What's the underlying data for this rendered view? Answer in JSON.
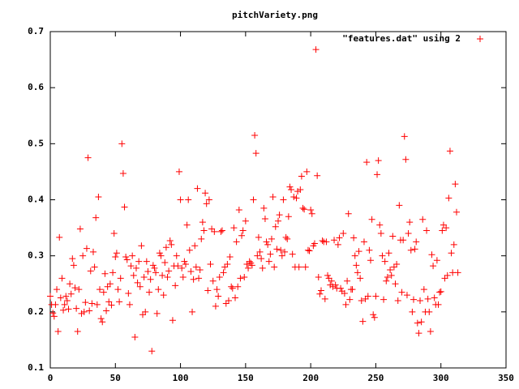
{
  "chart_data": {
    "type": "scatter",
    "title": "pitchVariety.png",
    "xlim": [
      0,
      350
    ],
    "xticks": [
      0,
      50,
      100,
      150,
      200,
      250,
      300,
      350
    ],
    "ylim": [
      0.1,
      0.7
    ],
    "yticks": [
      0.1,
      0.2,
      0.3,
      0.4,
      0.5,
      0.6,
      0.7
    ],
    "legend": "top-right",
    "series": [
      {
        "name": "\"features.dat\" using 2",
        "color": "#ff0000",
        "x": [
          0,
          1,
          2,
          3,
          4,
          5,
          6,
          7,
          8,
          9,
          10,
          11,
          12,
          13,
          14,
          15,
          16,
          17,
          18,
          19,
          20,
          21,
          22,
          23,
          24,
          25,
          26,
          27,
          28,
          29,
          30,
          31,
          32,
          33,
          34,
          35,
          36,
          37,
          38,
          39,
          40,
          41,
          42,
          43,
          44,
          45,
          46,
          47,
          48,
          49,
          50,
          51,
          52,
          53,
          54,
          55,
          56,
          57,
          58,
          59,
          60,
          61,
          62,
          63,
          64,
          65,
          66,
          67,
          68,
          69,
          70,
          71,
          72,
          73,
          74,
          75,
          76,
          77,
          78,
          79,
          80,
          81,
          82,
          83,
          84,
          85,
          86,
          87,
          88,
          89,
          90,
          91,
          92,
          93,
          94,
          95,
          96,
          97,
          98,
          99,
          100,
          101,
          102,
          103,
          104,
          105,
          106,
          107,
          108,
          109,
          110,
          111,
          112,
          113,
          114,
          115,
          116,
          117,
          118,
          119,
          120,
          121,
          122,
          123,
          124,
          125,
          126,
          127,
          128,
          129,
          130,
          131,
          132,
          133,
          134,
          135,
          136,
          137,
          138,
          139,
          140,
          141,
          142,
          143,
          144,
          145,
          146,
          147,
          148,
          149,
          150,
          151,
          152,
          153,
          154,
          155,
          156,
          157,
          158,
          159,
          160,
          161,
          162,
          163,
          164,
          165,
          166,
          167,
          168,
          169,
          170,
          171,
          172,
          173,
          174,
          175,
          176,
          177,
          178,
          179,
          180,
          181,
          182,
          183,
          184,
          185,
          186,
          187,
          188,
          189,
          190,
          191,
          192,
          193,
          194,
          195,
          196,
          197,
          198,
          199,
          200,
          201,
          202,
          203,
          204,
          205,
          206,
          207,
          208,
          209,
          210,
          211,
          212,
          213,
          214,
          215,
          216,
          217,
          218,
          219,
          220,
          221,
          222,
          223,
          224,
          225,
          226,
          227,
          228,
          229,
          230,
          231,
          232,
          233,
          234,
          235,
          236,
          237,
          238,
          239,
          240,
          241,
          242,
          243,
          244,
          245,
          246,
          247,
          248,
          249,
          250,
          251,
          252,
          253,
          254,
          255,
          256,
          257,
          258,
          259,
          260,
          261,
          262,
          263,
          264,
          265,
          266,
          267,
          268,
          269,
          270,
          271,
          272,
          273,
          274,
          275,
          276,
          277,
          278,
          279,
          280,
          281,
          282,
          283,
          284,
          285,
          286,
          287,
          288,
          289,
          290,
          291,
          292,
          293,
          294,
          295,
          296,
          297,
          298,
          299,
          300,
          301,
          302,
          303,
          304,
          305,
          306,
          307,
          308,
          309,
          310,
          311,
          312,
          313
        ],
        "values": [
          0.228,
          0.213,
          0.198,
          0.192,
          0.213,
          0.24,
          0.165,
          0.333,
          0.225,
          0.26,
          0.203,
          0.213,
          0.228,
          0.22,
          0.205,
          0.25,
          0.232,
          0.295,
          0.283,
          0.243,
          0.206,
          0.165,
          0.24,
          0.348,
          0.197,
          0.3,
          0.2,
          0.217,
          0.313,
          0.475,
          0.202,
          0.273,
          0.215,
          0.307,
          0.28,
          0.368,
          0.213,
          0.405,
          0.24,
          0.188,
          0.182,
          0.235,
          0.268,
          0.202,
          0.245,
          0.218,
          0.25,
          0.212,
          0.27,
          0.34,
          0.298,
          0.305,
          0.24,
          0.218,
          0.26,
          0.5,
          0.447,
          0.387,
          0.298,
          0.293,
          0.233,
          0.213,
          0.282,
          0.3,
          0.265,
          0.155,
          0.278,
          0.252,
          0.29,
          0.245,
          0.318,
          0.195,
          0.262,
          0.2,
          0.29,
          0.272,
          0.235,
          0.258,
          0.13,
          0.283,
          0.278,
          0.27,
          0.197,
          0.24,
          0.305,
          0.3,
          0.265,
          0.23,
          0.288,
          0.315,
          0.262,
          0.273,
          0.327,
          0.32,
          0.185,
          0.282,
          0.247,
          0.3,
          0.282,
          0.45,
          0.4,
          0.278,
          0.262,
          0.29,
          0.285,
          0.355,
          0.4,
          0.31,
          0.272,
          0.2,
          0.258,
          0.318,
          0.28,
          0.42,
          0.26,
          0.275,
          0.33,
          0.36,
          0.345,
          0.412,
          0.393,
          0.238,
          0.4,
          0.285,
          0.348,
          0.255,
          0.343,
          0.21,
          0.24,
          0.228,
          0.262,
          0.343,
          0.345,
          0.27,
          0.28,
          0.215,
          0.285,
          0.22,
          0.298,
          0.245,
          0.242,
          0.35,
          0.225,
          0.325,
          0.245,
          0.382,
          0.26,
          0.336,
          0.345,
          0.262,
          0.362,
          0.285,
          0.278,
          0.29,
          0.287,
          0.283,
          0.4,
          0.515,
          0.483,
          0.3,
          0.333,
          0.307,
          0.295,
          0.278,
          0.385,
          0.366,
          0.325,
          0.32,
          0.29,
          0.303,
          0.33,
          0.405,
          0.28,
          0.352,
          0.312,
          0.362,
          0.373,
          0.31,
          0.3,
          0.4,
          0.307,
          0.333,
          0.33,
          0.37,
          0.423,
          0.418,
          0.303,
          0.405,
          0.28,
          0.403,
          0.415,
          0.28,
          0.418,
          0.442,
          0.385,
          0.383,
          0.28,
          0.45,
          0.31,
          0.309,
          0.382,
          0.375,
          0.318,
          0.322,
          0.668,
          0.443,
          0.262,
          0.232,
          0.238,
          0.327,
          0.325,
          0.223,
          0.325,
          0.265,
          0.26,
          0.248,
          0.255,
          0.245,
          0.328,
          0.248,
          0.242,
          0.32,
          0.332,
          0.242,
          0.237,
          0.34,
          0.233,
          0.213,
          0.255,
          0.375,
          0.222,
          0.24,
          0.24,
          0.332,
          0.3,
          0.283,
          0.27,
          0.308,
          0.26,
          0.22,
          0.183,
          0.325,
          0.223,
          0.467,
          0.228,
          0.31,
          0.292,
          0.365,
          0.195,
          0.19,
          0.228,
          0.445,
          0.47,
          0.355,
          0.34,
          0.3,
          0.222,
          0.29,
          0.255,
          0.262,
          0.305,
          0.275,
          0.265,
          0.335,
          0.28,
          0.25,
          0.285,
          0.22,
          0.39,
          0.328,
          0.235,
          0.328,
          0.513,
          0.472,
          0.23,
          0.34,
          0.36,
          0.31,
          0.2,
          0.222,
          0.312,
          0.325,
          0.18,
          0.162,
          0.22,
          0.182,
          0.365,
          0.24,
          0.2,
          0.345,
          0.223,
          0.2,
          0.165,
          0.302,
          0.282,
          0.225,
          0.213,
          0.292,
          0.213,
          0.235,
          0.236,
          0.345,
          0.355,
          0.26,
          0.35,
          0.265,
          0.403,
          0.487,
          0.305,
          0.27,
          0.32,
          0.428,
          0.378,
          0.27
        ]
      }
    ]
  }
}
